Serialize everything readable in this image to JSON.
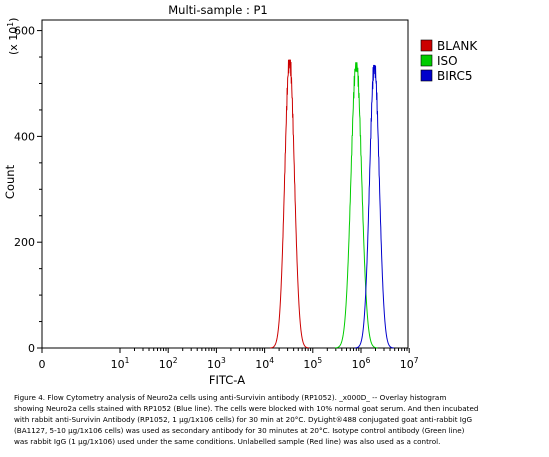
{
  "chart_data": {
    "type": "line",
    "title": "Multi-sample : P1",
    "xlabel": "FITC-A",
    "ylabel": "Count",
    "y_multiplier_label": "(x 10",
    "y_multiplier_exp": "1",
    "y_multiplier_close": ")",
    "x_scale": "log",
    "xlim": [
      0,
      10000000
    ],
    "ylim": [
      0,
      620
    ],
    "x_ticks": [
      {
        "value": 0,
        "base": "0",
        "exp": ""
      },
      {
        "value": 10,
        "base": "10",
        "exp": "1"
      },
      {
        "value": 100,
        "base": "10",
        "exp": "2"
      },
      {
        "value": 1000,
        "base": "10",
        "exp": "3"
      },
      {
        "value": 10000,
        "base": "10",
        "exp": "4"
      },
      {
        "value": 100000,
        "base": "10",
        "exp": "5"
      },
      {
        "value": 1000000,
        "base": "10",
        "exp": "6"
      },
      {
        "value": 10000000,
        "base": "10",
        "exp": "7"
      }
    ],
    "y_ticks": [
      0,
      200,
      400,
      600
    ],
    "legend_position": "top-right",
    "series": [
      {
        "name": "BLANK",
        "color": "#cc0000",
        "peak_x": 33000,
        "peak_y": 545,
        "log_sigma": 0.1
      },
      {
        "name": "ISO",
        "color": "#00cc00",
        "peak_x": 800000,
        "peak_y": 540,
        "log_sigma": 0.11
      },
      {
        "name": "BIRC5",
        "color": "#0000cc",
        "peak_x": 1900000,
        "peak_y": 535,
        "log_sigma": 0.1
      }
    ],
    "grid": false
  },
  "caption": {
    "lines": [
      "Figure 4. Flow Cytometry analysis of Neuro2a cells using anti-Survivin antibody (RP1052). _x000D_ -- Overlay histogram",
      "showing Neuro2a cells stained with RP1052 (Blue line). The cells were blocked with 10% normal goat serum. And then incubated",
      "with rabbit anti-Survivin Antibody (RP1052, 1 µg/1x106 cells) for 30 min at 20°C. DyLight®488 conjugated goat anti-rabbit IgG",
      "(BA1127, 5-10 µg/1x106 cells) was used as secondary antibody for 30 minutes at 20°C. Isotype control antibody (Green line)",
      "was rabbit IgG (1 µg/1x106) used under the same conditions. Unlabelled sample (Red line) was also used as a control."
    ]
  }
}
